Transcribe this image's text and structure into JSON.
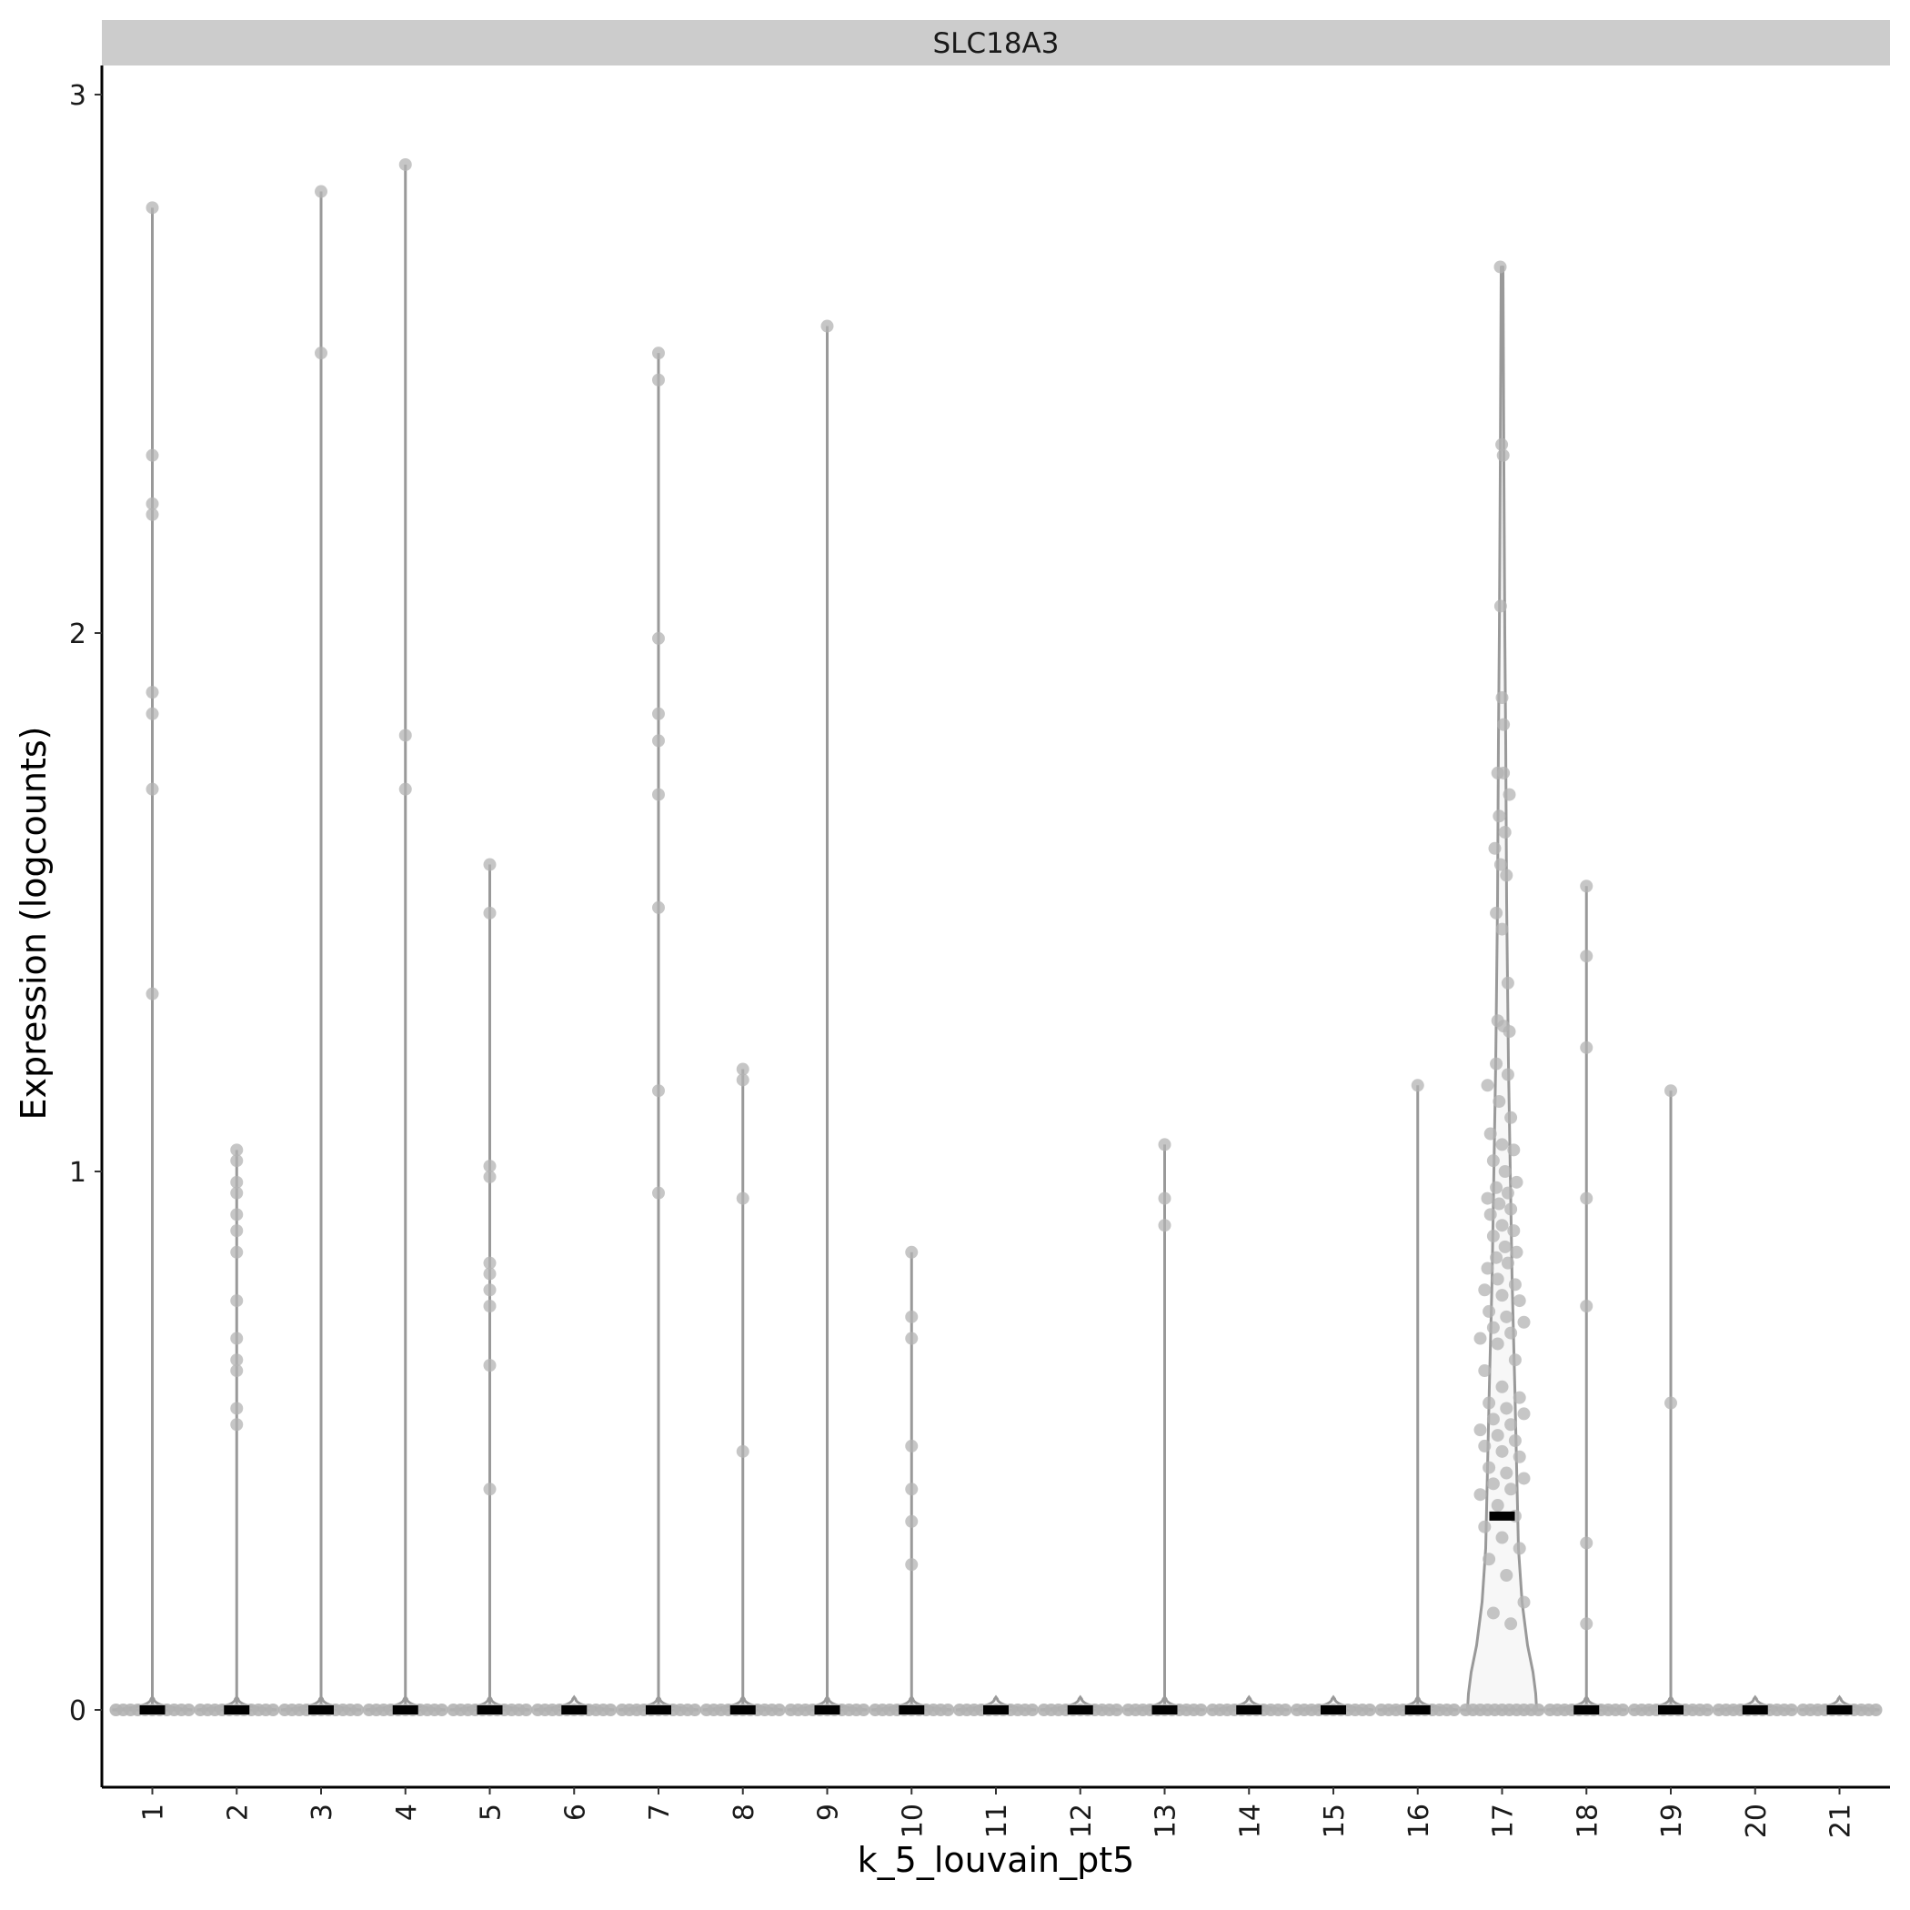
{
  "chart_data": {
    "type": "violin",
    "title": "",
    "facet_label": "SLC18A3",
    "xlabel": "k_5_louvain_pt5",
    "ylabel": "Expression (logcounts)",
    "ylim": [
      -0.15,
      3.05
    ],
    "yticks": [
      0,
      1,
      2,
      3
    ],
    "grid": false,
    "categories": [
      "1",
      "2",
      "3",
      "4",
      "5",
      "6",
      "7",
      "8",
      "9",
      "10",
      "11",
      "12",
      "13",
      "14",
      "15",
      "16",
      "17",
      "18",
      "19",
      "20",
      "21"
    ],
    "medians": [
      0,
      0,
      0,
      0,
      0,
      0,
      0,
      0,
      0,
      0,
      0,
      0,
      0,
      0,
      0,
      0,
      0.36,
      0,
      0,
      0,
      0
    ],
    "max_values": [
      2.79,
      1.04,
      2.82,
      2.87,
      1.57,
      0,
      2.52,
      1.19,
      2.57,
      0.85,
      0,
      0,
      1.05,
      0,
      0,
      1.16,
      2.68,
      1.53,
      1.15,
      0,
      0
    ],
    "points": [
      [
        2.79,
        2.33,
        2.24,
        2.22,
        1.89,
        1.85,
        1.71,
        1.33
      ],
      [
        1.04,
        1.02,
        0.98,
        0.96,
        0.92,
        0.89,
        0.85,
        0.76,
        0.69,
        0.65,
        0.63,
        0.56,
        0.53
      ],
      [
        2.82,
        2.52
      ],
      [
        2.87,
        1.81,
        1.71
      ],
      [
        1.57,
        1.48,
        1.01,
        0.99,
        0.83,
        0.81,
        0.78,
        0.75,
        0.64,
        0.41
      ],
      [],
      [
        2.52,
        2.47,
        1.99,
        1.85,
        1.8,
        1.7,
        1.49,
        1.15,
        0.96
      ],
      [
        1.19,
        1.17,
        0.95,
        0.48
      ],
      [
        2.57
      ],
      [
        0.85,
        0.73,
        0.69,
        0.49,
        0.41,
        0.35,
        0.27
      ],
      [],
      [],
      [
        1.05,
        0.95,
        0.9
      ],
      [],
      [],
      [
        1.16
      ],
      [
        2.68,
        2.35,
        2.33,
        2.05,
        1.88,
        1.83,
        1.74,
        1.74,
        1.7,
        1.66,
        1.63,
        1.6,
        1.57,
        1.55,
        1.48,
        1.45,
        1.35,
        1.28,
        1.27,
        1.26,
        1.2,
        1.18,
        1.16,
        1.13,
        1.1,
        1.07,
        1.05,
        1.04,
        1.02,
        1.0,
        0.98,
        0.97,
        0.96,
        0.95,
        0.94,
        0.93,
        0.92,
        0.9,
        0.89,
        0.88,
        0.86,
        0.85,
        0.84,
        0.83,
        0.82,
        0.8,
        0.79,
        0.78,
        0.77,
        0.76,
        0.74,
        0.73,
        0.72,
        0.71,
        0.7,
        0.69,
        0.68,
        0.65,
        0.63,
        0.6,
        0.58,
        0.57,
        0.56,
        0.55,
        0.54,
        0.53,
        0.52,
        0.51,
        0.5,
        0.49,
        0.48,
        0.47,
        0.45,
        0.44,
        0.43,
        0.42,
        0.41,
        0.4,
        0.38,
        0.36,
        0.34,
        0.32,
        0.3,
        0.28,
        0.25,
        0.2,
        0.18,
        0.16
      ],
      [
        1.53,
        1.4,
        1.23,
        0.95,
        0.75,
        0.31,
        0.16
      ],
      [
        1.15,
        0.57
      ],
      [],
      []
    ]
  },
  "colors": {
    "violin_outline": "#999999",
    "violin_fill": "#f7f7f7",
    "points": "#b3b3b3",
    "median": "#000000",
    "strip_background": "#cccccc",
    "axis": "#000000"
  }
}
